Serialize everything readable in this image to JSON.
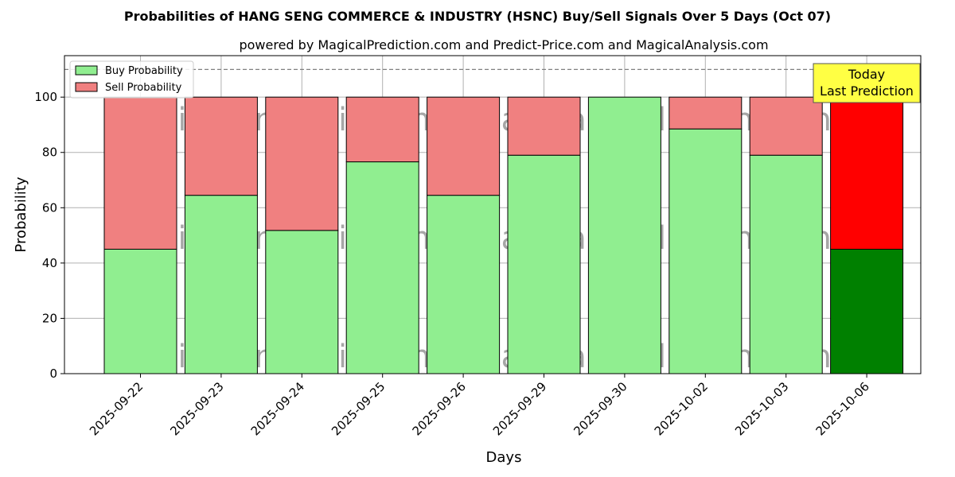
{
  "chart_data": {
    "type": "bar",
    "stacked": true,
    "title": "Probabilities of HANG SENG COMMERCE & INDUSTRY (HSNC) Buy/Sell Signals Over 5 Days (Oct 07)",
    "subtitle": "powered by MagicalPrediction.com and Predict-Price.com and MagicalAnalysis.com",
    "xlabel": "Days",
    "ylabel": "Probability",
    "ylim": [
      0,
      115
    ],
    "yticks": [
      0,
      20,
      40,
      60,
      80,
      100
    ],
    "grid": true,
    "legend_position": "top-left",
    "categories": [
      "2025-09-22",
      "2025-09-23",
      "2025-09-24",
      "2025-09-25",
      "2025-09-26",
      "2025-09-29",
      "2025-09-30",
      "2025-10-02",
      "2025-10-03",
      "2025-10-06"
    ],
    "series": [
      {
        "name": "Buy Probability",
        "color": "#90ee90",
        "values": [
          45,
          64.5,
          51.8,
          76.6,
          64.5,
          79,
          100,
          88.5,
          79,
          45
        ]
      },
      {
        "name": "Sell Probability",
        "color": "#f08080",
        "values": [
          55,
          35.5,
          48.2,
          23.4,
          35.5,
          21,
          0,
          11.5,
          21,
          55
        ]
      }
    ],
    "highlight": {
      "index": 9,
      "buy_color": "#008000",
      "sell_color": "#ff0000"
    },
    "reference_line": {
      "y": 110,
      "style": "dashed",
      "color": "#808080"
    },
    "annotation": {
      "lines": [
        "Today",
        "Last Prediction"
      ],
      "background": "#ffff44"
    },
    "watermarks": [
      "MagicalAnalysis.com",
      "MagicalPrediction.com"
    ]
  }
}
